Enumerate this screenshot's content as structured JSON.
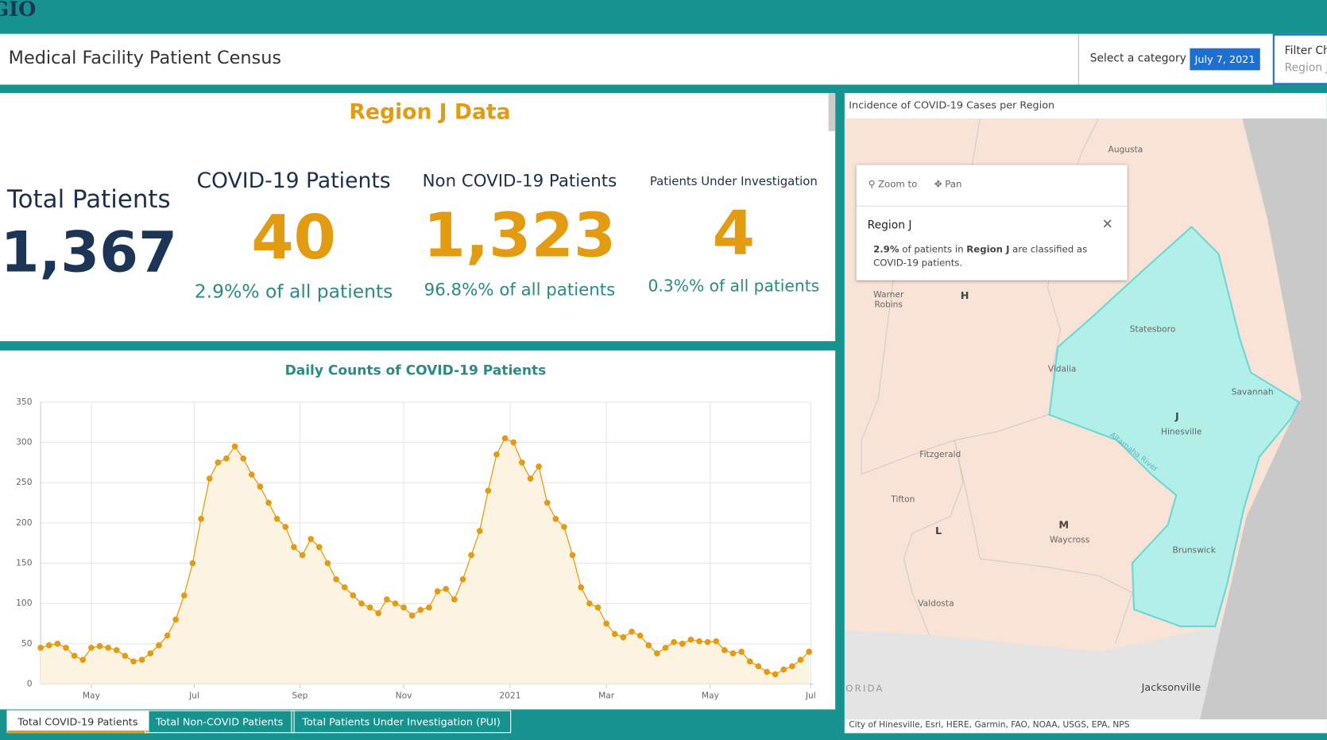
{
  "header": {
    "logo": "GIO",
    "title": "Medical Facility Patient Census",
    "select_label": "Select a category",
    "date": "July 7, 2021",
    "filter_label": "Filter Ch",
    "filter_value": "Region J"
  },
  "stats": {
    "title": "Region J Data",
    "items": [
      {
        "label": "Total Patients",
        "value": "1,367"
      },
      {
        "label": "COVID-19 Patients",
        "value": "40",
        "share": "2.9%% of all patients"
      },
      {
        "label": "Non COVID-19 Patients",
        "value": "1,323",
        "share": "96.8%% of all patients"
      },
      {
        "label": "Patients Under Investigation",
        "value": "4",
        "share": "0.3%% of all patients"
      }
    ]
  },
  "chart_data": {
    "type": "area",
    "title": "Daily Counts of COVID-19 Patients",
    "color": "#e39b12",
    "fill": "#fdf3e1",
    "values": [
      45,
      48,
      50,
      45,
      35,
      30,
      45,
      47,
      45,
      42,
      35,
      28,
      30,
      38,
      48,
      60,
      80,
      110,
      150,
      205,
      255,
      275,
      280,
      295,
      280,
      260,
      245,
      225,
      205,
      195,
      170,
      160,
      180,
      170,
      150,
      130,
      120,
      110,
      100,
      95,
      88,
      105,
      100,
      95,
      85,
      92,
      95,
      115,
      118,
      105,
      130,
      160,
      190,
      240,
      285,
      305,
      300,
      275,
      255,
      270,
      225,
      205,
      195,
      160,
      120,
      100,
      95,
      75,
      62,
      58,
      65,
      60,
      48,
      38,
      45,
      52,
      50,
      55,
      53,
      52,
      53,
      42,
      38,
      40,
      28,
      22,
      15,
      12,
      18,
      22,
      30,
      40
    ],
    "xlim": [
      0,
      91.5
    ],
    "xticks": [
      {
        "value": 6,
        "label": "May"
      },
      {
        "value": 18.2,
        "label": "Jul"
      },
      {
        "value": 30.7,
        "label": "Sep"
      },
      {
        "value": 43,
        "label": "Nov"
      },
      {
        "value": 55.6,
        "label": "2021"
      },
      {
        "value": 67,
        "label": "Mar"
      },
      {
        "value": 79.3,
        "label": "May"
      },
      {
        "value": 91.2,
        "label": "Jul"
      }
    ],
    "ylim": [
      0,
      350
    ],
    "yticks": [
      0,
      50,
      100,
      150,
      200,
      250,
      300,
      350
    ],
    "grid": true
  },
  "tabs": [
    "Total COVID-19 Patients",
    "Total Non-COVID Patients",
    "Total Patients Under Investigation (PUI)"
  ],
  "map": {
    "title": "Incidence of COVID-19 Cases per Region",
    "popup": {
      "tools": [
        "Zoom to",
        "Pan"
      ],
      "title": "Region J",
      "pct": "2.9%",
      "text1": " of patients in ",
      "region": "Region J",
      "text2": " are classified as",
      "text3": "COVID-19 patients."
    },
    "labels": [
      "Augusta",
      "Warner",
      "Robins",
      "H",
      "Statesboro",
      "Vidalia",
      "Savannah",
      "J",
      "Hinesville",
      "Altamaha River",
      "Fitzgerald",
      "Tifton",
      "L",
      "M",
      "Waycross",
      "Brunswick",
      "Valdosta",
      "Jacksonville",
      "ORIDA"
    ],
    "attribution": "City of Hinesville, Esri, HERE, Garmin, FAO, NOAA, USGS, EPA, NPS"
  }
}
